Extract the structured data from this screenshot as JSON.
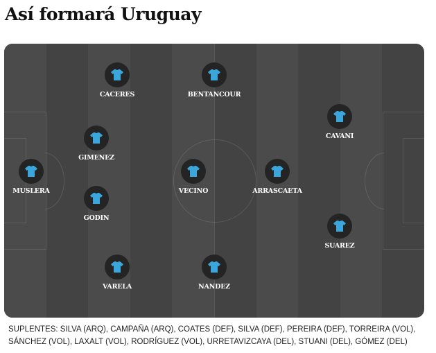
{
  "title": "Así formará Uruguay",
  "jersey_color": "#3aa6dc",
  "players": [
    {
      "name": "CACERES"
    },
    {
      "name": "BENTANCOUR"
    },
    {
      "name": "GIMENEZ"
    },
    {
      "name": "MUSLERA"
    },
    {
      "name": "VECINO"
    },
    {
      "name": "ARRASCAETA"
    },
    {
      "name": "GODIN"
    },
    {
      "name": "CAVANI"
    },
    {
      "name": "SUAREZ"
    },
    {
      "name": "VARELA"
    },
    {
      "name": "NANDEZ"
    }
  ],
  "substitutes_line1": "SUPLENTES: SILVA (ARQ), CAMPAÑA (ARQ), COATES (DEF), SILVA (DEF), PEREIRA (DEF), TORREIRA (VOL),",
  "substitutes_line2": "SÁNCHEZ (VOL), LAXALT (VOL), RODRÍGUEZ (VOL), URRETAVIZCAYA (DEL), STUANI (DEL), GÓMEZ (DEL)"
}
